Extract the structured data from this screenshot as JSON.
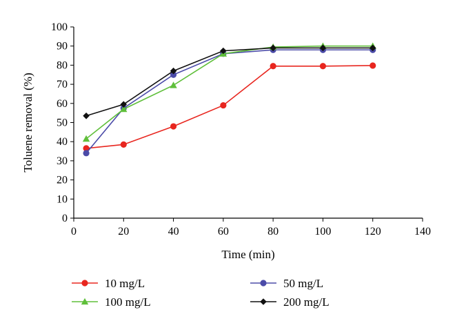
{
  "chart_data": {
    "type": "line",
    "title": "",
    "xlabel": "Time (min)",
    "ylabel": "Toluene removal (%)",
    "xlim": [
      0,
      140
    ],
    "ylim": [
      0,
      100
    ],
    "xticks": [
      0,
      20,
      40,
      60,
      80,
      100,
      120,
      140
    ],
    "yticks": [
      0,
      10,
      20,
      30,
      40,
      50,
      60,
      70,
      80,
      90,
      100
    ],
    "grid": false,
    "legend_position": "bottom",
    "series": [
      {
        "name": "10 mg/L",
        "color": "#e8261f",
        "marker": "circle",
        "points": [
          [
            5,
            36.5
          ],
          [
            20,
            38.5
          ],
          [
            40,
            48
          ],
          [
            60,
            59
          ],
          [
            80,
            79.5
          ],
          [
            100,
            79.5
          ],
          [
            120,
            79.8
          ]
        ]
      },
      {
        "name": "50 mg/L",
        "color": "#4b4ba8",
        "marker": "circle",
        "points": [
          [
            5,
            34
          ],
          [
            20,
            57.5
          ],
          [
            40,
            75
          ],
          [
            60,
            86
          ],
          [
            80,
            88
          ],
          [
            100,
            88
          ],
          [
            120,
            88
          ]
        ]
      },
      {
        "name": "100 mg/L",
        "color": "#5fbf3a",
        "marker": "triangle",
        "points": [
          [
            5,
            41.5
          ],
          [
            20,
            57
          ],
          [
            40,
            69.5
          ],
          [
            60,
            86
          ],
          [
            80,
            89.5
          ],
          [
            100,
            90
          ],
          [
            120,
            90
          ]
        ]
      },
      {
        "name": "200 mg/L",
        "color": "#111111",
        "marker": "diamond",
        "points": [
          [
            5,
            53.5
          ],
          [
            20,
            59.5
          ],
          [
            40,
            77
          ],
          [
            60,
            87.5
          ],
          [
            80,
            89
          ],
          [
            100,
            89
          ],
          [
            120,
            89
          ]
        ]
      }
    ]
  }
}
